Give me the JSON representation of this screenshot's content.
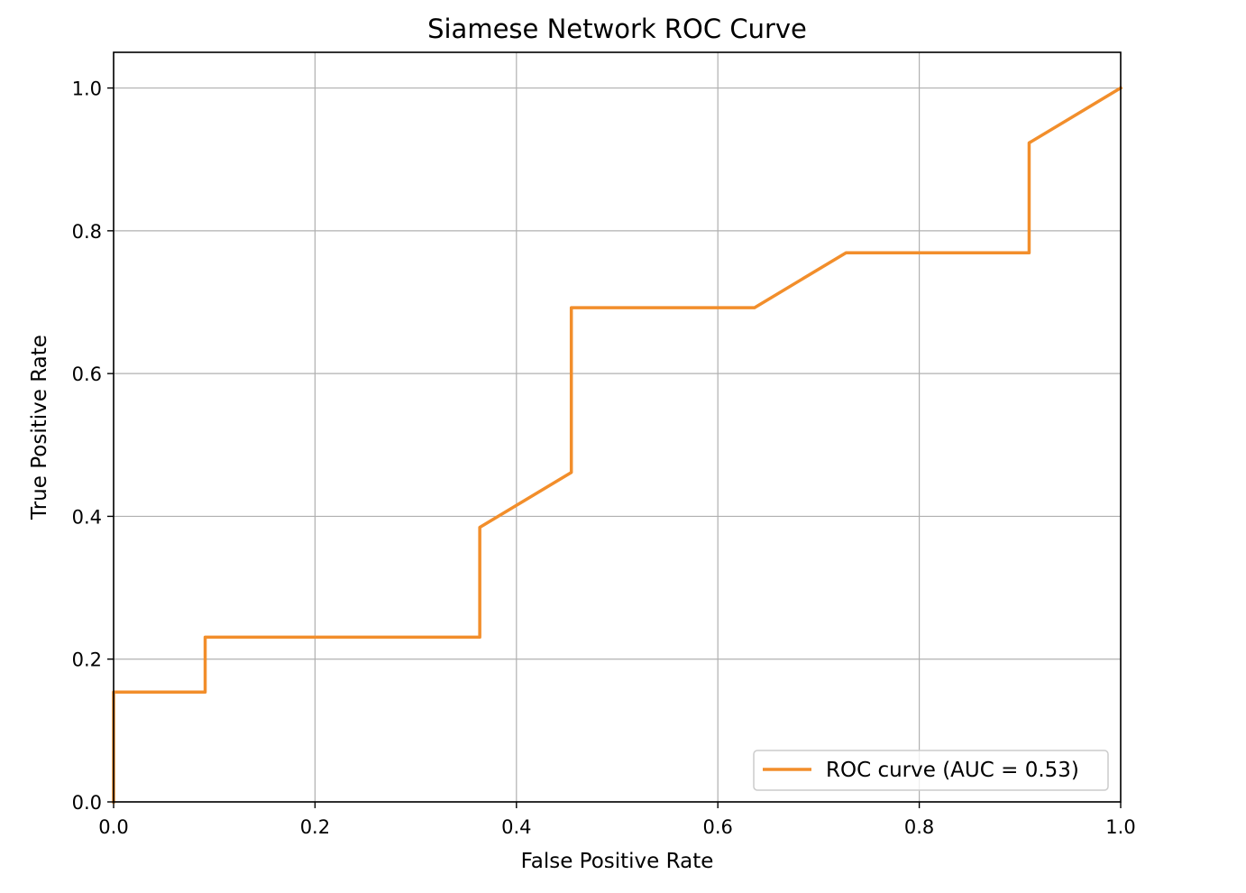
{
  "chart_data": {
    "type": "line",
    "title": "Siamese Network ROC Curve",
    "xlabel": "False Positive Rate",
    "ylabel": "True Positive Rate",
    "xlim": [
      0.0,
      1.0
    ],
    "ylim": [
      0.0,
      1.05
    ],
    "xticks": [
      0.0,
      0.2,
      0.4,
      0.6,
      0.8,
      1.0
    ],
    "yticks": [
      0.0,
      0.2,
      0.4,
      0.6,
      0.8,
      1.0
    ],
    "xtick_labels": [
      "0.0",
      "0.2",
      "0.4",
      "0.6",
      "0.8",
      "1.0"
    ],
    "ytick_labels": [
      "0.0",
      "0.2",
      "0.4",
      "0.6",
      "0.8",
      "1.0"
    ],
    "grid": true,
    "legend": {
      "position": "lower-right",
      "entries": [
        "ROC curve (AUC = 0.53)"
      ]
    },
    "series": [
      {
        "name": "ROC curve (AUC = 0.53)",
        "color": "#f28e2b",
        "x": [
          0.0,
          0.0,
          0.0909,
          0.0909,
          0.3636,
          0.3636,
          0.4545,
          0.4545,
          0.6364,
          0.7273,
          0.9091,
          0.9091,
          1.0
        ],
        "y": [
          0.0,
          0.1538,
          0.1538,
          0.2308,
          0.2308,
          0.3846,
          0.4615,
          0.6923,
          0.6923,
          0.7692,
          0.7692,
          0.9231,
          1.0
        ]
      }
    ]
  }
}
